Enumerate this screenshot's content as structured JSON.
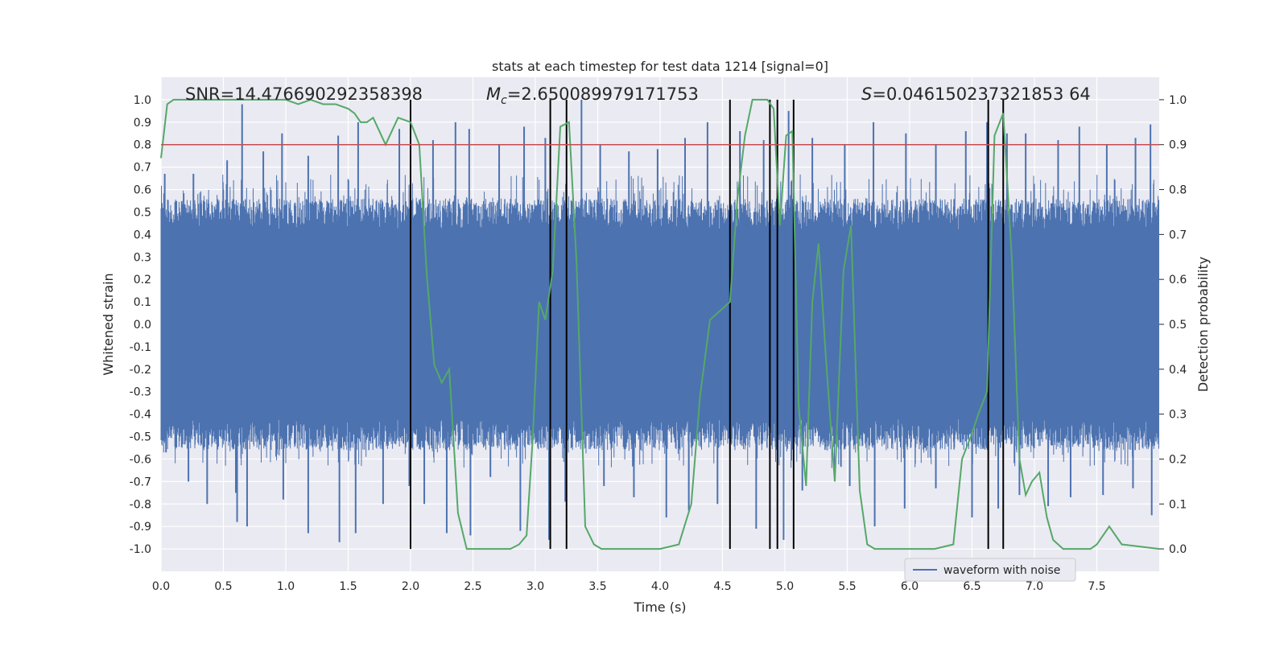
{
  "chart_data": {
    "type": "line",
    "title": "stats at each timestep for test data 1214 [signal=0]",
    "xlabel": "Time (s)",
    "ylabel": "Whitened strain",
    "y2label": "Detection probability",
    "xlim": [
      0.0,
      8.0
    ],
    "ylim": [
      -1.1,
      1.1
    ],
    "y2lim": [
      -0.05,
      1.05
    ],
    "xticks": [
      "0.0",
      "0.5",
      "1.0",
      "1.5",
      "2.0",
      "2.5",
      "3.0",
      "3.5",
      "4.0",
      "4.5",
      "5.0",
      "5.5",
      "6.0",
      "6.5",
      "7.0",
      "7.5"
    ],
    "yticks": [
      "1.0",
      "0.9",
      "0.8",
      "0.7",
      "0.6",
      "0.5",
      "0.4",
      "0.3",
      "0.2",
      "0.1",
      "0.0",
      "-0.1",
      "-0.2",
      "-0.3",
      "-0.4",
      "-0.5",
      "-0.6",
      "-0.7",
      "-0.8",
      "-0.9",
      "-1.0"
    ],
    "y2ticks": [
      "1.0",
      "0.9",
      "0.8",
      "0.7",
      "0.6",
      "0.5",
      "0.4",
      "0.3",
      "0.2",
      "0.1",
      "0.0"
    ],
    "annotations": {
      "snr": "SNR=14.476690292358398",
      "mc_symbol": "M",
      "mc_sub": "c",
      "mc_value": "=2.650089979171753",
      "s_symbol": "S",
      "s_value": "=0.046150237321853 64"
    },
    "legend": {
      "label": "waveform with noise",
      "location": "lower-right"
    },
    "threshold": {
      "value": 0.9,
      "axis": "right",
      "color": "#c44e52"
    },
    "vertical_lines": [
      2.0,
      3.12,
      3.25,
      4.56,
      4.88,
      4.94,
      5.07,
      6.63,
      6.75
    ],
    "series": [
      {
        "name": "waveform with noise",
        "axis": "left",
        "color": "#4c72b0",
        "description": "dense whitened strain noise spanning ~+-0.4 with spikes to +-1.0",
        "spikes_top": [
          [
            0.03,
            0.67
          ],
          [
            0.26,
            0.67
          ],
          [
            0.53,
            0.73
          ],
          [
            0.65,
            0.98
          ],
          [
            0.82,
            0.77
          ],
          [
            0.97,
            0.85
          ],
          [
            1.18,
            0.75
          ],
          [
            1.42,
            0.84
          ],
          [
            1.58,
            0.9
          ],
          [
            1.91,
            0.87
          ],
          [
            2.18,
            0.82
          ],
          [
            2.36,
            0.9
          ],
          [
            2.47,
            0.87
          ],
          [
            2.71,
            0.8
          ],
          [
            2.91,
            0.88
          ],
          [
            3.08,
            0.83
          ],
          [
            3.37,
            1.0
          ],
          [
            3.52,
            0.8
          ],
          [
            3.75,
            0.77
          ],
          [
            3.98,
            0.78
          ],
          [
            4.2,
            0.83
          ],
          [
            4.38,
            0.9
          ],
          [
            4.64,
            0.86
          ],
          [
            4.83,
            0.82
          ],
          [
            5.03,
            0.95
          ],
          [
            5.22,
            0.83
          ],
          [
            5.48,
            0.8
          ],
          [
            5.71,
            0.9
          ],
          [
            5.97,
            0.85
          ],
          [
            6.21,
            0.8
          ],
          [
            6.45,
            0.86
          ],
          [
            6.62,
            0.9
          ],
          [
            6.78,
            0.85
          ],
          [
            6.93,
            0.85
          ],
          [
            7.19,
            0.82
          ],
          [
            7.36,
            0.88
          ],
          [
            7.58,
            0.8
          ],
          [
            7.81,
            0.83
          ],
          [
            7.93,
            0.89
          ]
        ],
        "spikes_bottom": [
          [
            0.04,
            -0.57
          ],
          [
            0.22,
            -0.7
          ],
          [
            0.37,
            -0.8
          ],
          [
            0.6,
            -0.75
          ],
          [
            0.61,
            -0.88
          ],
          [
            0.69,
            -0.9
          ],
          [
            0.98,
            -0.78
          ],
          [
            1.18,
            -0.93
          ],
          [
            1.43,
            -0.97
          ],
          [
            1.56,
            -0.93
          ],
          [
            1.78,
            -0.8
          ],
          [
            1.99,
            -0.72
          ],
          [
            2.11,
            -0.8
          ],
          [
            2.29,
            -0.93
          ],
          [
            2.48,
            -0.94
          ],
          [
            2.64,
            -0.68
          ],
          [
            2.88,
            -0.92
          ],
          [
            3.11,
            -0.96
          ],
          [
            3.24,
            -0.79
          ],
          [
            3.55,
            -0.72
          ],
          [
            3.79,
            -0.77
          ],
          [
            4.05,
            -0.86
          ],
          [
            4.23,
            -0.83
          ],
          [
            4.46,
            -0.8
          ],
          [
            4.77,
            -0.91
          ],
          [
            4.99,
            -0.96
          ],
          [
            5.14,
            -0.74
          ],
          [
            5.52,
            -0.72
          ],
          [
            5.72,
            -0.9
          ],
          [
            5.96,
            -0.82
          ],
          [
            6.21,
            -0.73
          ],
          [
            6.5,
            -0.86
          ],
          [
            6.71,
            -0.82
          ],
          [
            6.88,
            -0.76
          ],
          [
            7.11,
            -0.81
          ],
          [
            7.29,
            -0.77
          ],
          [
            7.55,
            -0.76
          ],
          [
            7.79,
            -0.73
          ],
          [
            7.94,
            -0.85
          ]
        ]
      },
      {
        "name": "detection probability",
        "axis": "right",
        "color": "#55a868",
        "x": [
          0.0,
          0.05,
          0.1,
          0.2,
          0.5,
          0.8,
          1.0,
          1.1,
          1.2,
          1.3,
          1.4,
          1.5,
          1.55,
          1.6,
          1.65,
          1.7,
          1.75,
          1.8,
          1.85,
          1.9,
          2.0,
          2.07,
          2.13,
          2.19,
          2.25,
          2.31,
          2.38,
          2.45,
          2.5,
          2.6,
          2.8,
          2.87,
          2.93,
          2.98,
          3.03,
          3.08,
          3.14,
          3.2,
          3.27,
          3.33,
          3.4,
          3.47,
          3.53,
          3.6,
          3.8,
          4.0,
          4.15,
          4.25,
          4.32,
          4.4,
          4.48,
          4.56,
          4.62,
          4.68,
          4.74,
          4.8,
          4.86,
          4.91,
          4.96,
          5.01,
          5.06,
          5.11,
          5.17,
          5.22,
          5.27,
          5.33,
          5.4,
          5.47,
          5.53,
          5.6,
          5.66,
          5.72,
          5.78,
          5.85,
          6.0,
          6.2,
          6.35,
          6.42,
          6.49,
          6.55,
          6.62,
          6.68,
          6.75,
          6.82,
          6.88,
          6.93,
          6.98,
          7.04,
          7.1,
          7.15,
          7.23,
          7.35,
          7.45,
          7.5,
          7.55,
          7.6,
          7.7,
          8.0
        ],
        "y": [
          0.87,
          0.99,
          1.0,
          1.0,
          1.0,
          1.0,
          1.0,
          0.99,
          1.0,
          0.99,
          0.99,
          0.98,
          0.97,
          0.95,
          0.95,
          0.96,
          0.93,
          0.9,
          0.93,
          0.96,
          0.95,
          0.9,
          0.61,
          0.41,
          0.37,
          0.4,
          0.08,
          0.0,
          0.0,
          0.0,
          0.0,
          0.01,
          0.03,
          0.25,
          0.55,
          0.51,
          0.62,
          0.94,
          0.95,
          0.64,
          0.05,
          0.01,
          0.0,
          0.0,
          0.0,
          0.0,
          0.01,
          0.1,
          0.34,
          0.51,
          0.53,
          0.55,
          0.78,
          0.92,
          1.0,
          1.0,
          1.0,
          0.98,
          0.72,
          0.92,
          0.93,
          0.32,
          0.14,
          0.55,
          0.68,
          0.42,
          0.15,
          0.62,
          0.72,
          0.13,
          0.01,
          0.0,
          0.0,
          0.0,
          0.0,
          0.0,
          0.01,
          0.2,
          0.25,
          0.3,
          0.35,
          0.92,
          0.97,
          0.64,
          0.2,
          0.12,
          0.15,
          0.17,
          0.07,
          0.02,
          0.0,
          0.0,
          0.0,
          0.01,
          0.03,
          0.05,
          0.01,
          0.0
        ]
      }
    ]
  }
}
